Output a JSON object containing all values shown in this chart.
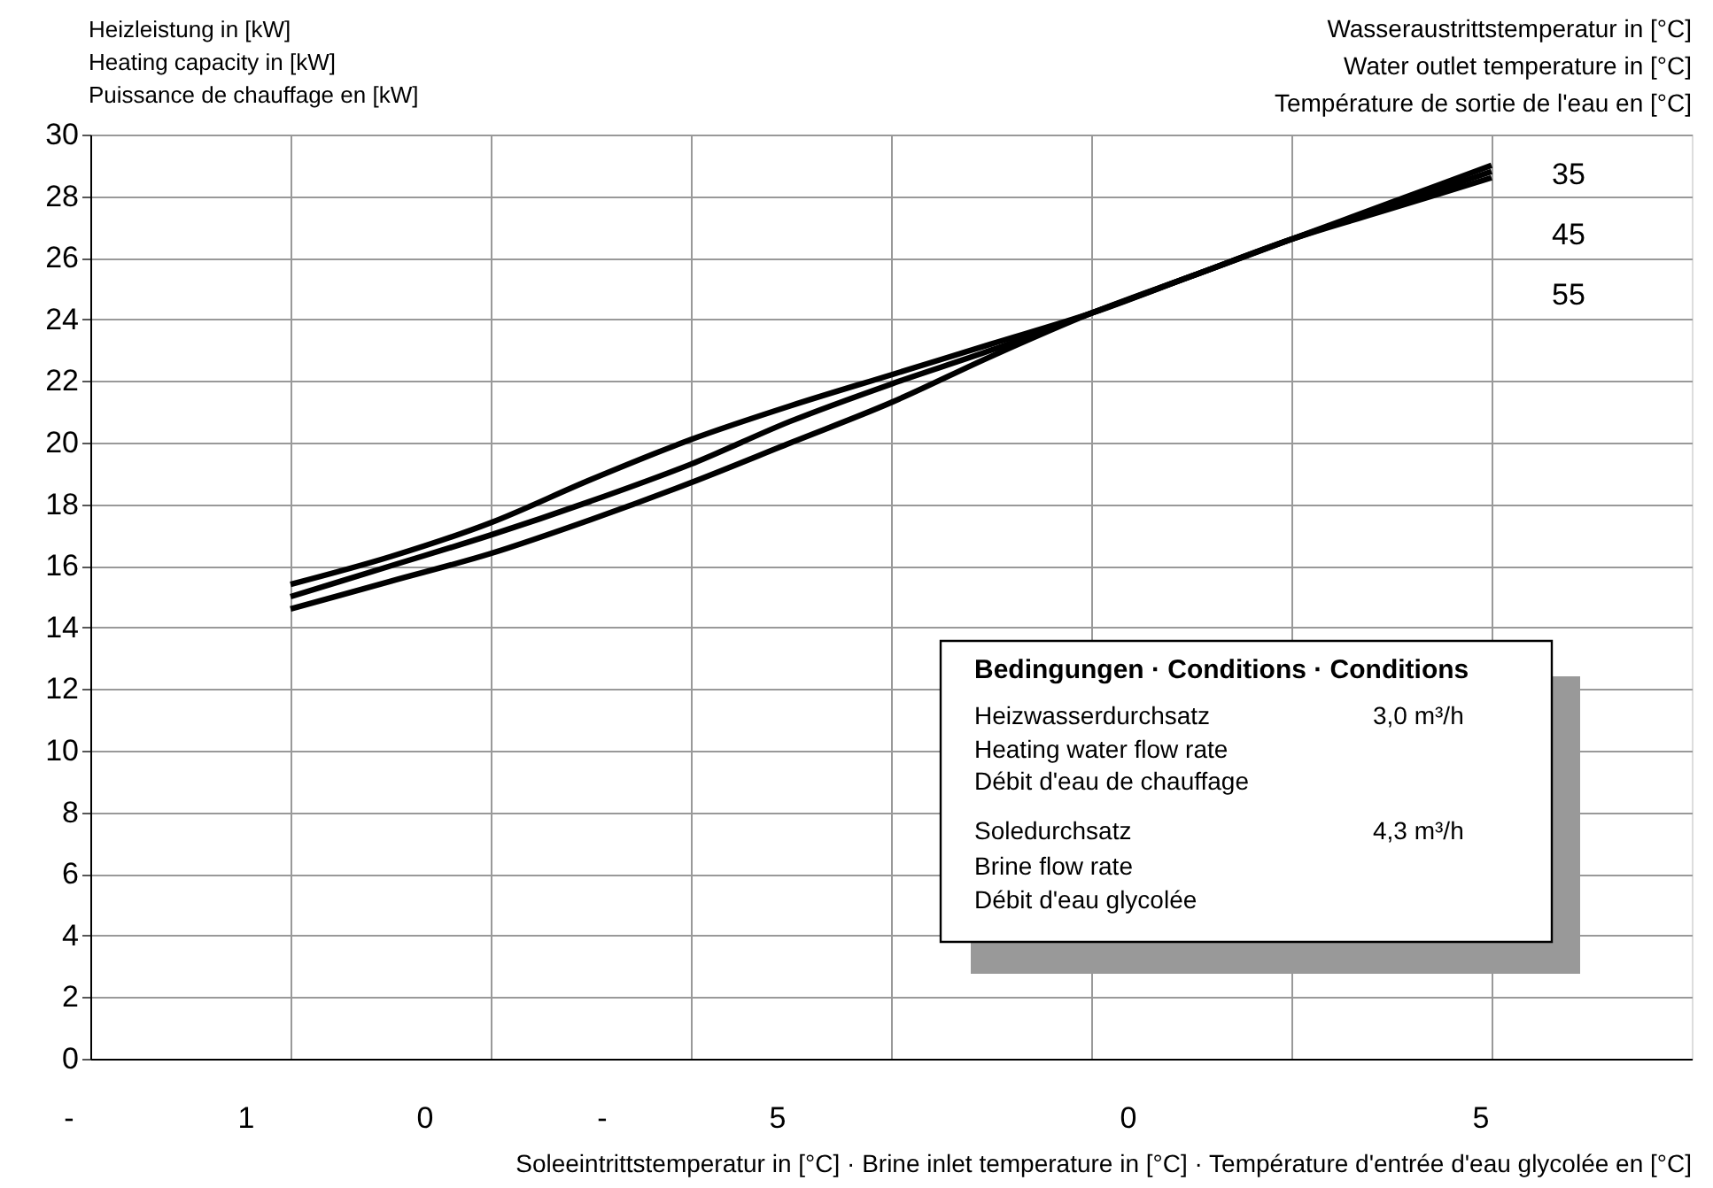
{
  "chart_data": {
    "type": "line",
    "ylabel": "Heizleistung in [kW]\nHeating capacity in [kW]\nPuissance de chauffage en [kW]",
    "xlabel": "Soleeintrittstemperatur in [°C] · Brine inlet temperature in [°C] · Température d'entrée d'eau glycolée en [°C]",
    "legend_title": "Wasseraustrittstemperatur in [°C]\nWater outlet temperature in [°C]\nTempérature de sortie de l'eau en [°C]",
    "categories": [
      null,
      null,
      null,
      null,
      null,
      null,
      null,
      null,
      null,
      null,
      null,
      null,
      null
    ],
    "series": [
      {
        "name": "35",
        "color": "#000000",
        "values": [
          15.4,
          16.3,
          17.4,
          18.8,
          20.1,
          21.2,
          22.2,
          23.2,
          24.2,
          25.4,
          26.6,
          27.8,
          29.0
        ]
      },
      {
        "name": "45",
        "color": "#000000",
        "values": [
          15.0,
          16.0,
          17.0,
          18.1,
          19.3,
          20.7,
          21.9,
          23.0,
          24.2,
          25.4,
          26.6,
          27.7,
          28.8
        ]
      },
      {
        "name": "55",
        "color": "#000000",
        "values": [
          14.6,
          15.5,
          16.4,
          17.5,
          18.7,
          20.0,
          21.3,
          22.8,
          24.2,
          25.4,
          26.6,
          27.6,
          28.6
        ]
      }
    ],
    "marker": "none",
    "ylim": [
      0,
      30
    ],
    "yticks": [
      0,
      2,
      4,
      6,
      8,
      10,
      12,
      14,
      16,
      18,
      20,
      22,
      24,
      26,
      28,
      30
    ],
    "grid": true,
    "line_style": "solid",
    "annotations": [
      "Bedingungen · Conditions · Conditions",
      "Heizwasserdurchsatz",
      "3,0 m³/h",
      "Heating water flow rate",
      "Débit d'eau de chauffage",
      "Soledurchsatz",
      "4,3 m³/h",
      "Brine flow rate",
      "Débit d'eau glycolée",
      "-",
      "1",
      "0",
      "-",
      "5",
      "0",
      "5"
    ]
  }
}
